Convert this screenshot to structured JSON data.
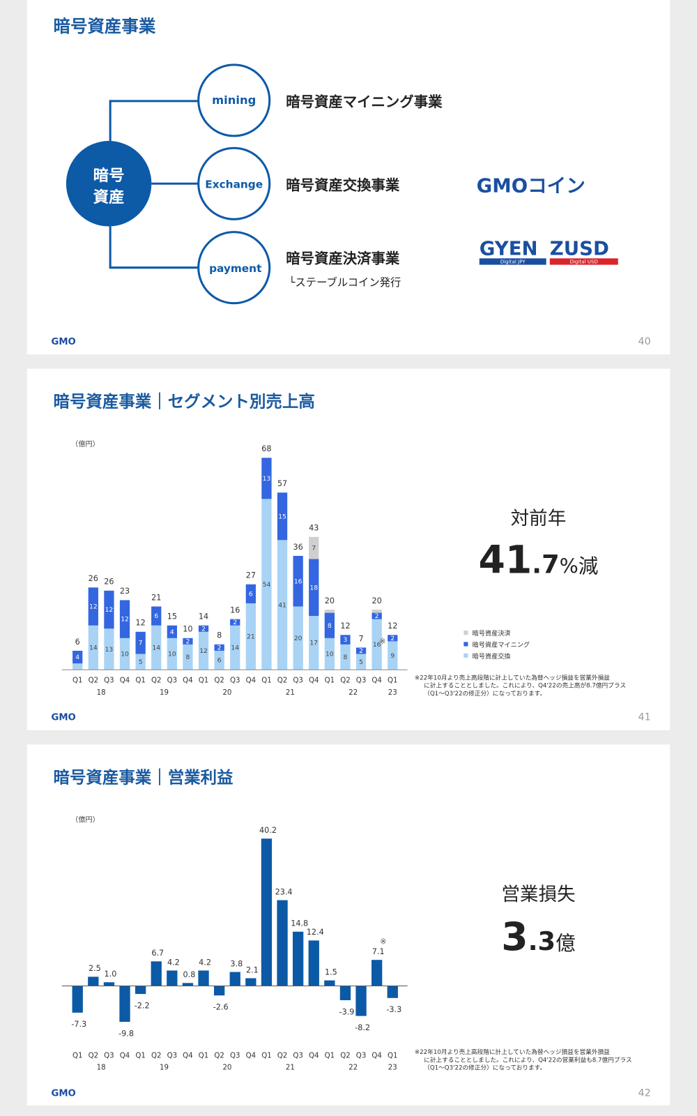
{
  "slide1": {
    "title": "暗号資産事業",
    "hub": [
      "暗号",
      "資産"
    ],
    "branches": [
      {
        "label": "mining",
        "name": "暗号資産マイニング事業"
      },
      {
        "label": "Exchange",
        "name": "暗号資産交換事業"
      },
      {
        "label": "payment",
        "name": "暗号資産決済事業",
        "sub": "└ステーブルコイン発行"
      }
    ],
    "logos": {
      "coin": "GMOコイン",
      "gyen": "GYEN",
      "gyen_sub": "Digital JPY",
      "zusd": "ZUSD",
      "zusd_sub": "Digital USD"
    },
    "footer": "GMO",
    "page": "40"
  },
  "chart_data": [
    {
      "type": "stacked_bar",
      "title": "暗号資産事業｜セグメント別売上高",
      "unit": "（億円）",
      "categories": [
        "Q1",
        "Q2",
        "Q3",
        "Q4",
        "Q1",
        "Q2",
        "Q3",
        "Q4",
        "Q1",
        "Q2",
        "Q3",
        "Q4",
        "Q1",
        "Q2",
        "Q3",
        "Q4",
        "Q1",
        "Q2",
        "Q3",
        "Q4",
        "Q1"
      ],
      "year_labels": [
        "18",
        "19",
        "20",
        "21",
        "22",
        "23"
      ],
      "series": [
        {
          "name": "暗号資産交換",
          "color": "#a9d3f5",
          "values": [
            2,
            14,
            13,
            10,
            5,
            14,
            10,
            8,
            12,
            6,
            14,
            21,
            54,
            41,
            20,
            17,
            10,
            8,
            5,
            16,
            9
          ],
          "value_labels": [
            null,
            "14",
            "13",
            "10",
            "5",
            "14",
            "10",
            "8",
            "12",
            "6",
            "14",
            "21",
            "54",
            "41",
            "20",
            "17",
            "10",
            "8",
            "5",
            "16",
            "9"
          ]
        },
        {
          "name": "暗号資産マイニング",
          "color": "#3366e0",
          "values": [
            4,
            12,
            12,
            12,
            7,
            6,
            4,
            2,
            2,
            2,
            2,
            6,
            13,
            15,
            16,
            18,
            8,
            3,
            2,
            2,
            2
          ],
          "value_labels": [
            "4",
            "12",
            "12",
            "12",
            "7",
            "6",
            "4",
            "2",
            "2",
            "2",
            "2",
            "6",
            "13",
            "15",
            "16",
            "18",
            "8",
            "3",
            "2",
            "2",
            "2"
          ]
        },
        {
          "name": "暗号資産決済",
          "color": "#cfcfcf",
          "values": [
            0,
            0,
            0,
            0,
            0,
            0,
            0,
            0,
            0,
            0,
            0,
            0,
            0,
            0,
            0,
            7,
            1,
            0,
            0,
            1,
            0
          ],
          "value_labels": [
            null,
            null,
            null,
            null,
            null,
            null,
            null,
            null,
            null,
            null,
            null,
            null,
            null,
            null,
            null,
            "7",
            null,
            null,
            null,
            null,
            null
          ]
        }
      ],
      "totals": [
        6,
        26,
        26,
        23,
        12,
        21,
        15,
        10,
        14,
        8,
        16,
        27,
        68,
        57,
        36,
        43,
        20,
        12,
        7,
        20,
        12
      ],
      "annotations": [
        {
          "text": "※",
          "index": 19
        }
      ],
      "ylim": [
        0,
        72
      ],
      "yticks": [],
      "callout": {
        "label": "対前年",
        "parts": [
          "41",
          ".7",
          "%減"
        ]
      },
      "note": [
        "※22年10月より売上高段階に計上していた為替ヘッジ損益を営業外損益",
        "に計上することとしました。これにより、Q4'22の売上高が8.7億円プラス",
        "（Q1～Q3'22の修正分）になっております。"
      ],
      "footer": "GMO",
      "page": "41"
    },
    {
      "type": "bar",
      "title": "暗号資産事業｜営業利益",
      "unit": "（億円）",
      "categories": [
        "Q1",
        "Q2",
        "Q3",
        "Q4",
        "Q1",
        "Q2",
        "Q3",
        "Q4",
        "Q1",
        "Q2",
        "Q3",
        "Q4",
        "Q1",
        "Q2",
        "Q3",
        "Q4",
        "Q1",
        "Q2",
        "Q3",
        "Q4",
        "Q1"
      ],
      "year_labels": [
        "18",
        "19",
        "20",
        "21",
        "22",
        "23"
      ],
      "color": "#0c5aa6",
      "values": [
        -7.3,
        2.5,
        1.0,
        -9.8,
        -2.2,
        6.7,
        4.2,
        0.8,
        4.2,
        -2.6,
        3.8,
        2.1,
        40.2,
        23.4,
        14.8,
        12.4,
        1.5,
        -3.9,
        -8.2,
        7.1,
        -3.3
      ],
      "value_labels": [
        "-7.3",
        "2.5",
        "1.0",
        "-9.8",
        "-2.2",
        "6.7",
        "4.2",
        "0.8",
        "4.2",
        "-2.6",
        "3.8",
        "2.1",
        "40.2",
        "23.4",
        "14.8",
        "12.4",
        "1.5",
        "-3.9",
        "-8.2",
        "7.1",
        "-3.3"
      ],
      "annotations": [
        {
          "text": "※",
          "index": 19
        }
      ],
      "ylim": [
        -12,
        42
      ],
      "yticks": [],
      "callout": {
        "label": "営業損失",
        "parts": [
          "3",
          ".3",
          "億"
        ]
      },
      "note": [
        "※22年10月より売上高段階に計上していた為替ヘッジ損益を営業外損益",
        "に計上することとしました。これにより、Q4'22の営業利益も8.7億円プラス",
        "（Q1～Q3'22の修正分）になっております。"
      ],
      "footer": "GMO",
      "page": "42"
    }
  ]
}
